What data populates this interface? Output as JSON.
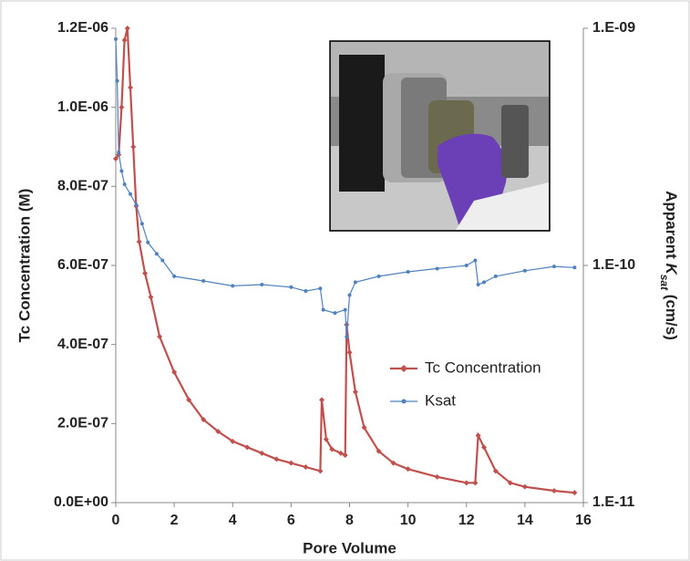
{
  "chart_data": {
    "type": "line",
    "xlabel": "Pore Volume",
    "ylabel": "Tc Concentration (M)",
    "y2label": [
      "Apparent ",
      "K",
      "sat",
      " (cm/s)"
    ],
    "xlim": [
      0,
      16
    ],
    "xticks": [
      0,
      2,
      4,
      6,
      8,
      10,
      12,
      14,
      16
    ],
    "ylim": [
      0,
      1.2e-06
    ],
    "yticks": [
      {
        "value": 0,
        "label": "0.0E+00"
      },
      {
        "value": 2e-07,
        "label": "2.0E-07"
      },
      {
        "value": 4e-07,
        "label": "4.0E-07"
      },
      {
        "value": 6e-07,
        "label": "6.0E-07"
      },
      {
        "value": 8e-07,
        "label": "8.0E-07"
      },
      {
        "value": 1e-06,
        "label": "1.0E-06"
      },
      {
        "value": 1.2e-06,
        "label": "1.2E-06"
      }
    ],
    "y2lim": [
      1e-11,
      1e-09
    ],
    "y2log": true,
    "y2ticks": [
      {
        "value": 1e-11,
        "label": "1.E-11"
      },
      {
        "value": 1e-10,
        "label": "1.E-10"
      },
      {
        "value": 1e-09,
        "label": "1.E-09"
      }
    ],
    "legend": "lower right",
    "series": [
      {
        "name": "Tc Concentration",
        "color": "#c0504d",
        "x": [
          0,
          0.1,
          0.2,
          0.3,
          0.4,
          0.5,
          0.6,
          0.7,
          0.8,
          1.0,
          1.2,
          1.5,
          2.0,
          2.5,
          3.0,
          3.5,
          4.0,
          4.5,
          5.0,
          5.5,
          6.0,
          6.5,
          7.0,
          7.05,
          7.2,
          7.4,
          7.7,
          7.85,
          7.9,
          8.0,
          8.2,
          8.5,
          9.0,
          9.5,
          10.0,
          11.0,
          12.0,
          12.3,
          12.4,
          12.6,
          13.0,
          13.5,
          14.0,
          15.0,
          15.7
        ],
        "values": [
          8.7e-07,
          8.8e-07,
          1e-06,
          1.17e-06,
          1.2e-06,
          1.05e-06,
          9e-07,
          7.5e-07,
          6.6e-07,
          5.8e-07,
          5.2e-07,
          4.2e-07,
          3.3e-07,
          2.6e-07,
          2.1e-07,
          1.8e-07,
          1.55e-07,
          1.4e-07,
          1.25e-07,
          1.1e-07,
          1e-07,
          9e-08,
          8e-08,
          2.6e-07,
          1.6e-07,
          1.35e-07,
          1.25e-07,
          1.2e-07,
          4.5e-07,
          3.8e-07,
          2.8e-07,
          1.9e-07,
          1.3e-07,
          1e-07,
          8.5e-08,
          6.5e-08,
          5e-08,
          5e-08,
          1.7e-07,
          1.4e-07,
          8e-08,
          5e-08,
          4e-08,
          3e-08,
          2.5e-08
        ]
      },
      {
        "name": "Ksat",
        "color": "#4f81bd",
        "axis": "y2",
        "x": [
          0,
          0.05,
          0.1,
          0.2,
          0.3,
          0.5,
          0.7,
          0.9,
          1.1,
          1.4,
          1.6,
          2,
          3,
          4,
          5,
          6,
          6.5,
          7,
          7.1,
          7.5,
          7.85,
          7.9,
          8,
          8.2,
          9,
          10,
          11,
          12,
          12.3,
          12.4,
          12.6,
          13,
          14,
          15,
          15.7
        ],
        "values": [
          9e-10,
          6e-10,
          3e-10,
          2.5e-10,
          2.2e-10,
          2e-10,
          1.8e-10,
          1.5e-10,
          1.25e-10,
          1.12e-10,
          1.05e-10,
          9e-11,
          8.6e-11,
          8.2e-11,
          8.3e-11,
          8.1e-11,
          7.8e-11,
          8e-11,
          6.5e-11,
          6.3e-11,
          6.5e-11,
          5e-11,
          7.5e-11,
          8.5e-11,
          9e-11,
          9.4e-11,
          9.7e-11,
          1e-10,
          1.05e-10,
          8.3e-11,
          8.5e-11,
          9e-11,
          9.5e-11,
          9.9e-11,
          9.8e-11
        ]
      }
    ]
  }
}
